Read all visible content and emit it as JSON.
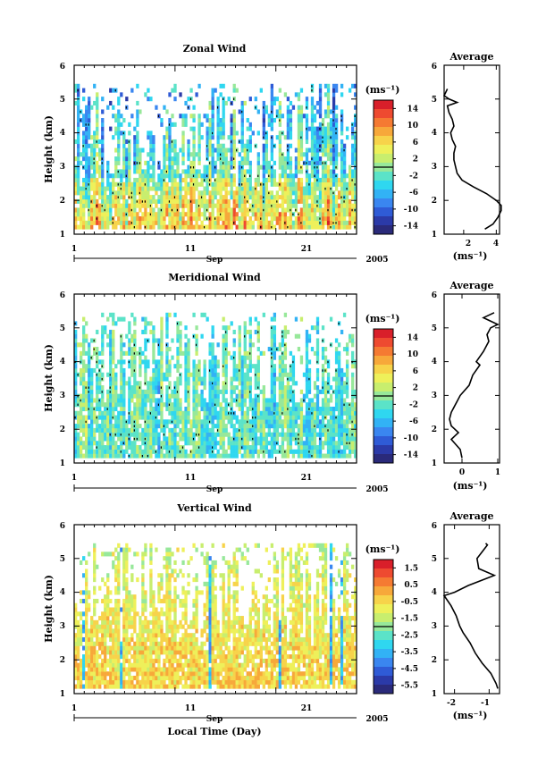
{
  "panels": [
    {
      "title": "Zonal Wind",
      "avg_title": "Average",
      "ylabel": "Height (km)",
      "yticks": [
        "1",
        "2",
        "3",
        "4",
        "5",
        "6"
      ],
      "xticks": [
        "1",
        "11",
        "21"
      ],
      "month_label": "Sep",
      "year_label": "2005",
      "cb_unit": "(ms⁻¹)",
      "cb_ticks": [
        "14",
        "10",
        "6",
        "2",
        "-2",
        "-6",
        "-10",
        "-14"
      ],
      "cb_min": -16,
      "cb_max": 16,
      "avg_xticks": [
        "2",
        "4"
      ],
      "avg_xunit": "(ms⁻¹)"
    },
    {
      "title": "Meridional Wind",
      "avg_title": "Average",
      "ylabel": "Height (km)",
      "yticks": [
        "1",
        "2",
        "3",
        "4",
        "5",
        "6"
      ],
      "xticks": [
        "1",
        "11",
        "21"
      ],
      "month_label": "Sep",
      "year_label": "2005",
      "cb_unit": "(ms⁻¹)",
      "cb_ticks": [
        "14",
        "10",
        "6",
        "2",
        "-2",
        "-6",
        "-10",
        "-14"
      ],
      "cb_min": -16,
      "cb_max": 16,
      "avg_xticks": [
        "0",
        "1"
      ],
      "avg_xunit": "(ms⁻¹)"
    },
    {
      "title": "Vertical Wind",
      "avg_title": "Average",
      "ylabel": "Height (km)",
      "yticks": [
        "1",
        "2",
        "3",
        "4",
        "5",
        "6"
      ],
      "xticks": [
        "1",
        "11",
        "21"
      ],
      "month_label": "Sep",
      "year_label": "2005",
      "xlabel": "Local Time (Day)",
      "cb_unit": "(ms⁻¹)",
      "cb_ticks": [
        "1.5",
        "0.5",
        "-0.5",
        "-1.5",
        "-2.5",
        "-3.5",
        "-4.5",
        "-5.5"
      ],
      "cb_min": -6,
      "cb_max": 2,
      "avg_xticks": [
        "-2",
        "-1"
      ],
      "avg_xunit": "(ms⁻¹)"
    }
  ],
  "colormap": [
    "#2a2a7a",
    "#2b3aa8",
    "#2f5bd6",
    "#3a86f0",
    "#32b2f5",
    "#2fd7f0",
    "#5be3c8",
    "#97e89a",
    "#c8ee6e",
    "#eef05a",
    "#f7d34a",
    "#f7a83a",
    "#f57a32",
    "#ee4a30",
    "#d91f2a"
  ],
  "chart_data": [
    {
      "type": "heatmap",
      "title": "Zonal Wind",
      "xlabel": "",
      "ylabel": "Height (km)",
      "xlim": [
        1,
        29
      ],
      "ylim": [
        1,
        6
      ],
      "x_date_ref": "Sep 2005",
      "valid_height_range": [
        1.15,
        5.45
      ],
      "colorbar_range": [
        -16,
        16
      ],
      "average_profile": {
        "title": "Average",
        "xlim": [
          0.8,
          4.2
        ],
        "height": [
          1.15,
          1.3,
          1.5,
          1.7,
          1.85,
          2.0,
          2.2,
          2.4,
          2.6,
          2.8,
          3.0,
          3.2,
          3.4,
          3.6,
          3.8,
          4.0,
          4.2,
          4.4,
          4.6,
          4.8,
          4.9,
          5.0,
          5.1,
          5.2,
          5.3
        ],
        "value": [
          3.3,
          3.8,
          4.1,
          4.3,
          4.3,
          4.0,
          3.4,
          2.6,
          1.9,
          1.6,
          1.5,
          1.4,
          1.4,
          1.5,
          1.3,
          1.2,
          1.4,
          1.3,
          1.1,
          1.0,
          1.6,
          1.1,
          0.8,
          0.9,
          1.0
        ]
      }
    },
    {
      "type": "heatmap",
      "title": "Meridional Wind",
      "xlabel": "",
      "ylabel": "Height (km)",
      "xlim": [
        1,
        29
      ],
      "ylim": [
        1,
        6
      ],
      "x_date_ref": "Sep 2005",
      "valid_height_range": [
        1.15,
        5.45
      ],
      "colorbar_range": [
        -16,
        16
      ],
      "average_profile": {
        "title": "Average",
        "xlim": [
          -0.5,
          1.05
        ],
        "height": [
          1.15,
          1.4,
          1.7,
          1.9,
          2.1,
          2.3,
          2.5,
          2.8,
          3.0,
          3.3,
          3.6,
          3.9,
          4.0,
          4.3,
          4.6,
          4.8,
          5.0,
          5.1,
          5.2,
          5.3,
          5.45
        ],
        "value": [
          0.0,
          -0.05,
          -0.3,
          -0.1,
          -0.3,
          -0.35,
          -0.3,
          -0.15,
          -0.05,
          0.2,
          0.3,
          0.5,
          0.4,
          0.6,
          0.75,
          0.7,
          0.8,
          1.0,
          0.8,
          0.6,
          0.9
        ]
      }
    },
    {
      "type": "heatmap",
      "title": "Vertical Wind",
      "xlabel": "Local Time (Day)",
      "ylabel": "Height (km)",
      "xlim": [
        1,
        29
      ],
      "ylim": [
        1,
        6
      ],
      "x_date_ref": "Sep 2005",
      "valid_height_range": [
        1.15,
        5.45
      ],
      "colorbar_range": [
        -6,
        2
      ],
      "average_profile": {
        "title": "Average",
        "xlim": [
          -2.3,
          -0.7
        ],
        "height": [
          1.15,
          1.3,
          1.6,
          1.9,
          2.2,
          2.5,
          2.8,
          3.0,
          3.3,
          3.6,
          3.9,
          4.0,
          4.2,
          4.4,
          4.5,
          4.7,
          5.0,
          5.2,
          5.4,
          5.45
        ],
        "value": [
          -0.75,
          -0.8,
          -0.95,
          -1.2,
          -1.4,
          -1.55,
          -1.75,
          -1.85,
          -1.95,
          -2.1,
          -2.3,
          -2.0,
          -1.6,
          -1.1,
          -0.85,
          -1.3,
          -1.35,
          -1.2,
          -1.05,
          -1.1
        ]
      }
    }
  ]
}
